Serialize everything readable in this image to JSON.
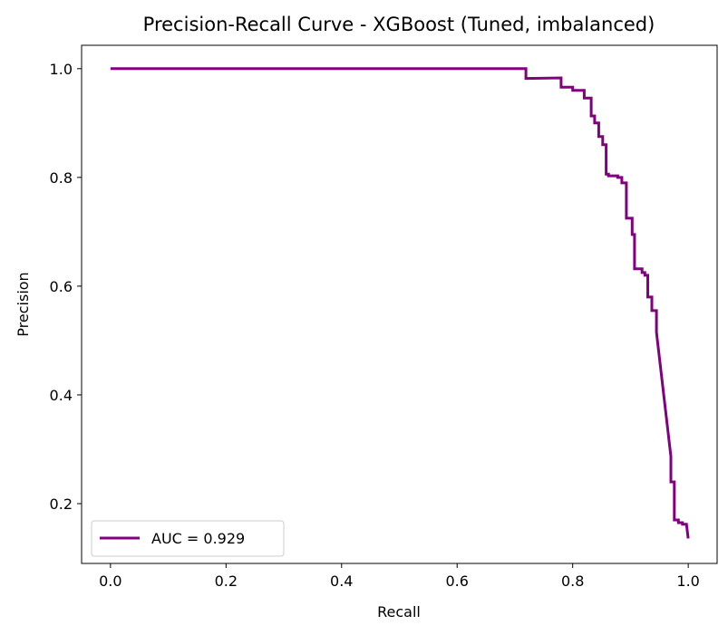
{
  "chart_data": {
    "type": "line",
    "title": "Precision-Recall Curve - XGBoost (Tuned, imbalanced)",
    "xlabel": "Recall",
    "ylabel": "Precision",
    "xlim": [
      -0.05,
      1.05
    ],
    "ylim": [
      0.09,
      1.043
    ],
    "xticks": [
      0.0,
      0.2,
      0.4,
      0.6,
      0.8,
      1.0
    ],
    "yticks": [
      0.2,
      0.4,
      0.6,
      0.8,
      1.0
    ],
    "xtick_labels": [
      "0.0",
      "0.2",
      "0.4",
      "0.6",
      "0.8",
      "1.0"
    ],
    "ytick_labels": [
      "0.2",
      "0.4",
      "0.6",
      "0.8",
      "1.0"
    ],
    "grid": false,
    "legend_position": "lower-left",
    "series": [
      {
        "name": "AUC = 0.929",
        "color": "#800080",
        "step": true,
        "x": [
          0.0,
          0.719,
          0.719,
          0.78,
          0.78,
          0.8,
          0.8,
          0.82,
          0.82,
          0.832,
          0.832,
          0.838,
          0.838,
          0.845,
          0.845,
          0.852,
          0.852,
          0.858,
          0.858,
          0.862,
          0.862,
          0.87,
          0.87,
          0.878,
          0.878,
          0.885,
          0.885,
          0.893,
          0.893,
          0.897,
          0.897,
          0.903,
          0.903,
          0.907,
          0.907,
          0.915,
          0.915,
          0.92,
          0.92,
          0.925,
          0.925,
          0.93,
          0.93,
          0.937,
          0.937,
          0.945,
          0.945,
          0.97,
          0.97,
          0.976,
          0.976,
          0.983,
          0.983,
          0.99,
          0.99,
          0.997,
          1.0
        ],
        "y": [
          1.0,
          1.0,
          0.982,
          0.983,
          0.966,
          0.966,
          0.96,
          0.96,
          0.946,
          0.946,
          0.913,
          0.913,
          0.9,
          0.9,
          0.875,
          0.875,
          0.86,
          0.86,
          0.806,
          0.806,
          0.803,
          0.803,
          0.803,
          0.803,
          0.8,
          0.8,
          0.79,
          0.79,
          0.725,
          0.725,
          0.725,
          0.725,
          0.695,
          0.695,
          0.632,
          0.632,
          0.632,
          0.632,
          0.625,
          0.625,
          0.62,
          0.62,
          0.58,
          0.58,
          0.555,
          0.555,
          0.515,
          0.287,
          0.24,
          0.24,
          0.17,
          0.17,
          0.165,
          0.165,
          0.162,
          0.162,
          0.136
        ]
      }
    ]
  }
}
